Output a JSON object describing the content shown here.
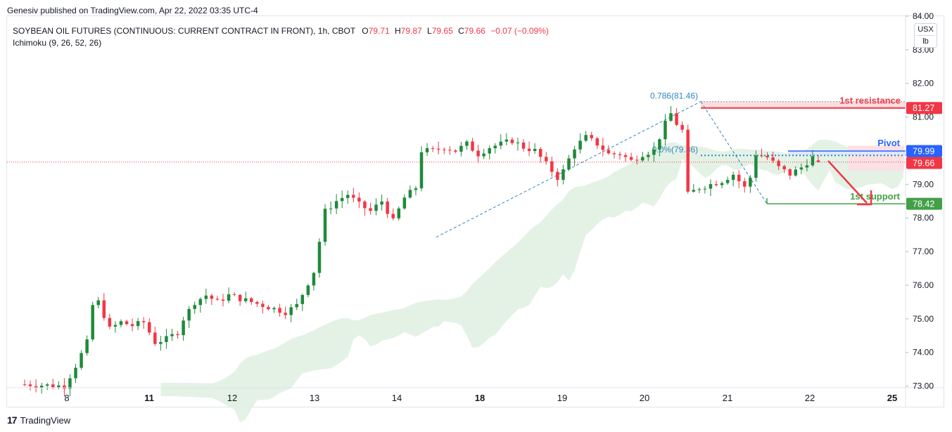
{
  "header": {
    "publisher": "Genesiv published on TradingView.com, Apr 22, 2022 03:35 UTC-4",
    "symbol": "SOYBEAN OIL FUTURES (CONTINUOUS: CURRENT CONTRACT IN FRONT), 1h, CBOT",
    "o_label": "O",
    "o_value": "79.71",
    "h_label": "H",
    "h_value": "79.87",
    "l_label": "L",
    "l_value": "79.65",
    "c_label": "C",
    "c_value": "79.66",
    "change": "−0.07 (−0.09%)",
    "indicator": "Ichimoku (9, 26, 52, 26)"
  },
  "unit_selector": {
    "currency": "USX",
    "unit": "lb"
  },
  "footer": {
    "brand": "TradingView",
    "logo_glyph": "17"
  },
  "colors": {
    "up": "#26a69a",
    "up_candle": "#1f8a3b",
    "down": "#f23645",
    "cloud": "#e4f2e6",
    "cloud_red": "#fbe1e3",
    "fib": "#2e86c1",
    "resistance": "#f23645",
    "pivot": "#2962ff",
    "support": "#43a047"
  },
  "chart_data": {
    "type": "candlestick",
    "timeframe": "1h",
    "x_tick_labels": [
      "8",
      "11",
      "12",
      "13",
      "14",
      "18",
      "19",
      "20",
      "21",
      "22",
      "25"
    ],
    "x_tick_bold": [
      "11",
      "18",
      "25"
    ],
    "y_tick_labels": [
      "73.00",
      "74.00",
      "75.00",
      "76.00",
      "77.00",
      "78.00",
      "79.00",
      "80.00",
      "81.00",
      "82.00",
      "83.00",
      "84.00"
    ],
    "ylim": [
      72.95,
      84.0
    ],
    "price_labels": [
      {
        "text": "81.27",
        "value": 81.27,
        "color": "#f23645"
      },
      {
        "text": "79.99",
        "value": 79.99,
        "color": "#2962ff"
      },
      {
        "text": "79.66",
        "value": 79.66,
        "color": "#f23645"
      },
      {
        "text": "78.42",
        "value": 78.42,
        "color": "#43a047"
      }
    ],
    "last_price": 79.66,
    "levels": [
      {
        "name": "1st resistance",
        "value": 81.27,
        "color": "#f23645"
      },
      {
        "name": "Pivot",
        "value": 79.99,
        "color": "#2962ff"
      },
      {
        "name": "1st support",
        "value": 78.42,
        "color": "#43a047"
      }
    ],
    "fib_labels": [
      {
        "text": "0.786(81.46)",
        "value": 81.46
      },
      {
        "text": "0.0%(79.86)",
        "value": 79.86
      }
    ],
    "trend_waypoints": [
      [
        0,
        73.05
      ],
      [
        7,
        73.0
      ],
      [
        9,
        73.6
      ],
      [
        11,
        74.3
      ],
      [
        12,
        75.4
      ],
      [
        13,
        75.5
      ],
      [
        15,
        74.7
      ],
      [
        17,
        74.9
      ],
      [
        19,
        74.8
      ],
      [
        21,
        74.9
      ],
      [
        23,
        74.3
      ],
      [
        25,
        74.4
      ],
      [
        27,
        74.6
      ],
      [
        28,
        75.0
      ],
      [
        30,
        75.5
      ],
      [
        32,
        75.7
      ],
      [
        34,
        75.5
      ],
      [
        36,
        75.7
      ],
      [
        38,
        75.6
      ],
      [
        40,
        75.5
      ],
      [
        42,
        75.4
      ],
      [
        44,
        75.3
      ],
      [
        46,
        75.2
      ],
      [
        48,
        75.4
      ],
      [
        51,
        76.4
      ],
      [
        53,
        78.2
      ],
      [
        55,
        78.5
      ],
      [
        57,
        78.7
      ],
      [
        59,
        78.4
      ],
      [
        61,
        78.2
      ],
      [
        63,
        78.5
      ],
      [
        65,
        77.9
      ],
      [
        67,
        78.6
      ],
      [
        69,
        78.9
      ],
      [
        70,
        80.0
      ],
      [
        72,
        80.0
      ],
      [
        74,
        80.1
      ],
      [
        76,
        80.0
      ],
      [
        78,
        80.2
      ],
      [
        80,
        79.9
      ],
      [
        82,
        80.1
      ],
      [
        84,
        80.2
      ],
      [
        86,
        80.3
      ],
      [
        88,
        80.1
      ],
      [
        90,
        80.0
      ],
      [
        92,
        79.6
      ],
      [
        94,
        79.2
      ],
      [
        95,
        79.4
      ],
      [
        97,
        80.1
      ],
      [
        99,
        80.4
      ],
      [
        101,
        80.2
      ],
      [
        103,
        79.9
      ],
      [
        105,
        79.9
      ],
      [
        107,
        79.7
      ],
      [
        109,
        79.9
      ],
      [
        111,
        80.0
      ],
      [
        113,
        80.8
      ],
      [
        114,
        81.1
      ],
      [
        115,
        80.8
      ],
      [
        116,
        80.6
      ],
      [
        117,
        78.7
      ],
      [
        119,
        78.9
      ],
      [
        121,
        79.0
      ],
      [
        123,
        79.1
      ],
      [
        125,
        79.3
      ],
      [
        127,
        78.9
      ],
      [
        128,
        79.2
      ],
      [
        129,
        79.9
      ],
      [
        131,
        79.8
      ],
      [
        133,
        79.5
      ],
      [
        135,
        79.3
      ],
      [
        137,
        79.5
      ],
      [
        139,
        79.8
      ],
      [
        140,
        79.71
      ]
    ],
    "candle_count": 141,
    "last_candle": {
      "open": 79.71,
      "high": 79.87,
      "low": 79.65,
      "close": 79.66
    }
  }
}
